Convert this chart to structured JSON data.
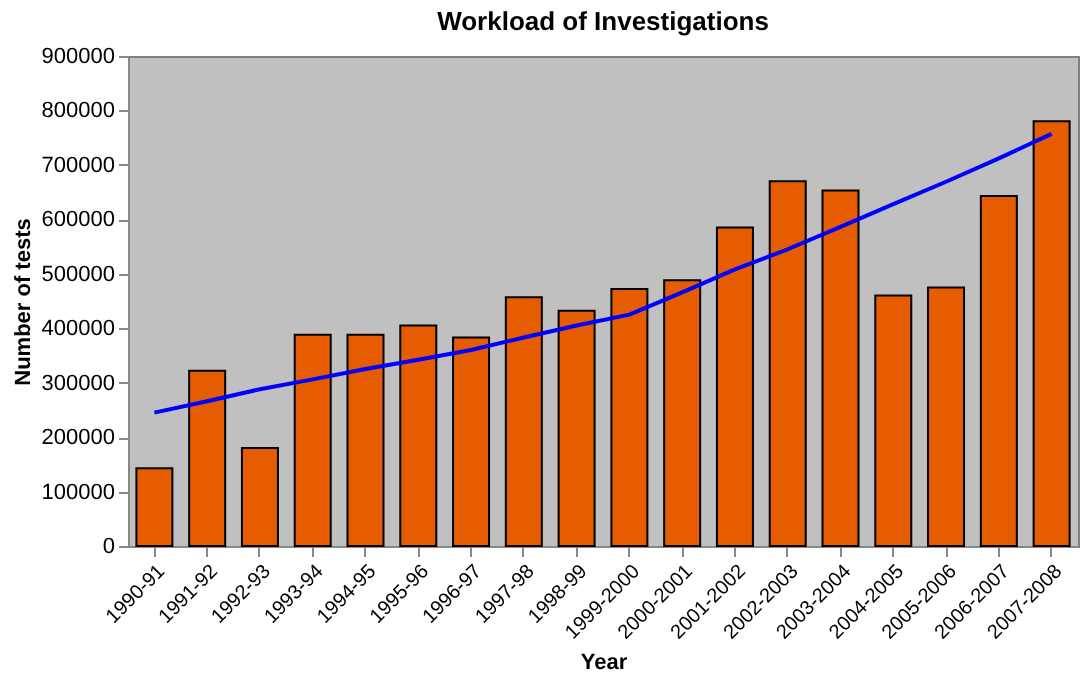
{
  "chart_data": {
    "type": "bar",
    "title": "Workload of Investigations",
    "xlabel": "Year",
    "ylabel": "Number of tests",
    "categories": [
      "1990-91",
      "1991-92",
      "1992-93",
      "1993-94",
      "1994-95",
      "1995-96",
      "1996-97",
      "1997-98",
      "1998-99",
      "1999-2000",
      "2000-2001",
      "2001-2002",
      "2002-2003",
      "2003-2004",
      "2004-2005",
      "2005-2006",
      "2006-2007",
      "2007-2008"
    ],
    "series": [
      {
        "color": "#e65c00",
        "values": [
          143000,
          322000,
          180000,
          388000,
          388000,
          405000,
          383000,
          457000,
          432000,
          472000,
          488000,
          585000,
          670000,
          653000,
          460000,
          475000,
          643000,
          780000
        ]
      },
      {
        "type": "line",
        "color": "#0000ff",
        "values": [
          245000,
          266000,
          288000,
          306000,
          325000,
          342000,
          360000,
          383000,
          405000,
          425000,
          466000,
          508000,
          545000,
          586000,
          628000,
          669000,
          712000,
          757000
        ]
      }
    ],
    "ylim": [
      0,
      900000
    ],
    "yticks": [
      0,
      100000,
      200000,
      300000,
      400000,
      500000,
      600000,
      700000,
      800000,
      900000
    ],
    "grid": false
  }
}
